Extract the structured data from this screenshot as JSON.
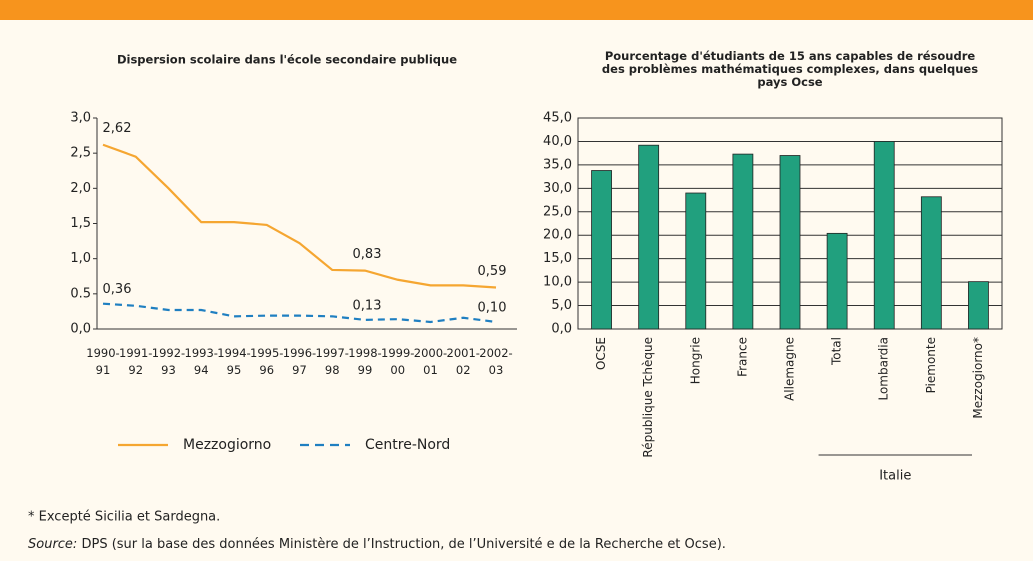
{
  "chart_data": [
    {
      "type": "line",
      "title": "Dispersion scolaire dans l'école secondaire publique",
      "categories": [
        "1990-91",
        "1991-92",
        "1992-93",
        "1993-94",
        "1994-95",
        "1995-96",
        "1996-97",
        "1997-98",
        "1998-99",
        "1999-00",
        "2000-01",
        "2001-02",
        "2002-03"
      ],
      "series": [
        {
          "name": "Mezzogiorno",
          "color": "#f5a631",
          "dash": false,
          "values": [
            2.62,
            2.45,
            2.0,
            1.52,
            1.52,
            1.48,
            1.22,
            0.84,
            0.83,
            0.7,
            0.62,
            0.62,
            0.59
          ],
          "value_labels": [
            "2,62",
            null,
            null,
            null,
            null,
            null,
            null,
            null,
            "0,83",
            null,
            null,
            null,
            "0,59"
          ]
        },
        {
          "name": "Centre-Nord",
          "color": "#1f7fc1",
          "dash": true,
          "values": [
            0.36,
            0.33,
            0.27,
            0.27,
            0.18,
            0.19,
            0.19,
            0.18,
            0.13,
            0.14,
            0.1,
            0.16,
            0.1
          ],
          "value_labels": [
            "0,36",
            null,
            null,
            null,
            null,
            null,
            null,
            null,
            "0,13",
            null,
            null,
            null,
            "0,10"
          ]
        }
      ],
      "ylim": [
        0,
        3
      ],
      "yticks": [
        {
          "value": 0,
          "label": "0,0"
        },
        0.5,
        {
          "value": 1,
          "label": "1,0"
        },
        {
          "value": 1.5,
          "label": "1,5"
        },
        {
          "value": 2,
          "label": "2,0"
        },
        {
          "value": 2.5,
          "label": "2,5"
        },
        {
          "value": 3,
          "label": "3,0"
        }
      ],
      "grid": false
    },
    {
      "type": "bar",
      "title": "Pourcentage d'étudiants de 15 ans capables de résoudre des problèmes mathématiques complexes, dans quelques pays Ocse",
      "categories": [
        "OCSE",
        "République Tchèque",
        "Hongrie",
        "France",
        "Allemagne",
        "Total",
        "Lombardia",
        "Piemonte",
        "Mezzogiorno*"
      ],
      "values": [
        33.8,
        39.2,
        29.0,
        37.3,
        37.0,
        20.4,
        40.0,
        28.2,
        10.1
      ],
      "color": "#21a07e",
      "ylim": [
        0,
        45
      ],
      "yticks": [
        {
          "value": 0,
          "label": "0,0"
        },
        {
          "value": 5,
          "label": "5,0"
        },
        {
          "value": 10,
          "label": "10,0"
        },
        {
          "value": 15,
          "label": "15,0"
        },
        {
          "value": 20,
          "label": "20,0"
        },
        {
          "value": 25,
          "label": "25,0"
        },
        {
          "value": 30,
          "label": "30,0"
        },
        {
          "value": 35,
          "label": "35,0"
        },
        {
          "value": 40,
          "label": "40,0"
        },
        {
          "value": 45,
          "label": "45,0"
        }
      ],
      "grid": true,
      "group_label": "Italie"
    }
  ],
  "notes": {
    "footnote": "* Excepté Sicilia et Sardegna.",
    "source_label": "Source:",
    "source_text": "DPS (sur la base des données Ministère de l’Instruction, de l’Université e de la Recherche et Ocse)."
  }
}
